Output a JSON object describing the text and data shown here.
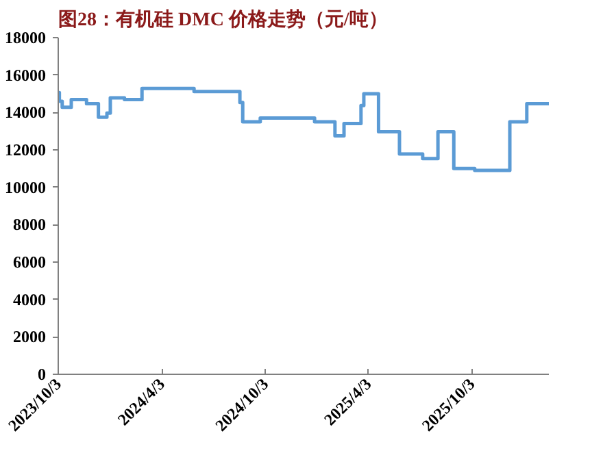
{
  "chart_data": {
    "type": "step",
    "title": "图28：有机硅 DMC 价格走势（元/吨）",
    "x": [
      "2023-10-03",
      "2023-10-05",
      "2023-10-10",
      "2023-10-26",
      "2023-11-22",
      "2023-12-13",
      "2023-12-28",
      "2024-01-03",
      "2024-01-28",
      "2024-02-28",
      "2024-05-30",
      "2024-08-19",
      "2024-08-24",
      "2024-09-24",
      "2024-12-29",
      "2025-02-03",
      "2025-02-19",
      "2025-03-21",
      "2025-03-26",
      "2025-04-21",
      "2025-05-28",
      "2025-07-08",
      "2025-08-04",
      "2025-09-01",
      "2025-10-08",
      "2025-12-09",
      "2026-01-08",
      "2026-02-16"
    ],
    "series": [
      {
        "color": "#5b9bd5",
        "values": [
          15060,
          14600,
          14280,
          14690,
          14470,
          13750,
          13970,
          14780,
          14690,
          15280,
          15120,
          14530,
          13500,
          13700,
          13500,
          12750,
          13410,
          14370,
          15000,
          12970,
          11780,
          11530,
          12970,
          11000,
          10900,
          13500,
          14470,
          14470
        ]
      }
    ],
    "xlim": [
      "2023-10-03",
      "2026-02-16"
    ],
    "xticks": [
      {
        "value": "2023-10-03",
        "label": "2023/10/3"
      },
      {
        "value": "2024-04-03",
        "label": "2024/4/3"
      },
      {
        "value": "2024-10-03",
        "label": "2024/10/3"
      },
      {
        "value": "2025-04-03",
        "label": "2025/4/3"
      },
      {
        "value": "2025-10-03",
        "label": "2025/10/3"
      }
    ],
    "ylim": [
      0,
      18000
    ],
    "yticks": [
      0,
      2000,
      4000,
      6000,
      8000,
      10000,
      12000,
      14000,
      16000,
      18000
    ],
    "line_style": "solid"
  }
}
